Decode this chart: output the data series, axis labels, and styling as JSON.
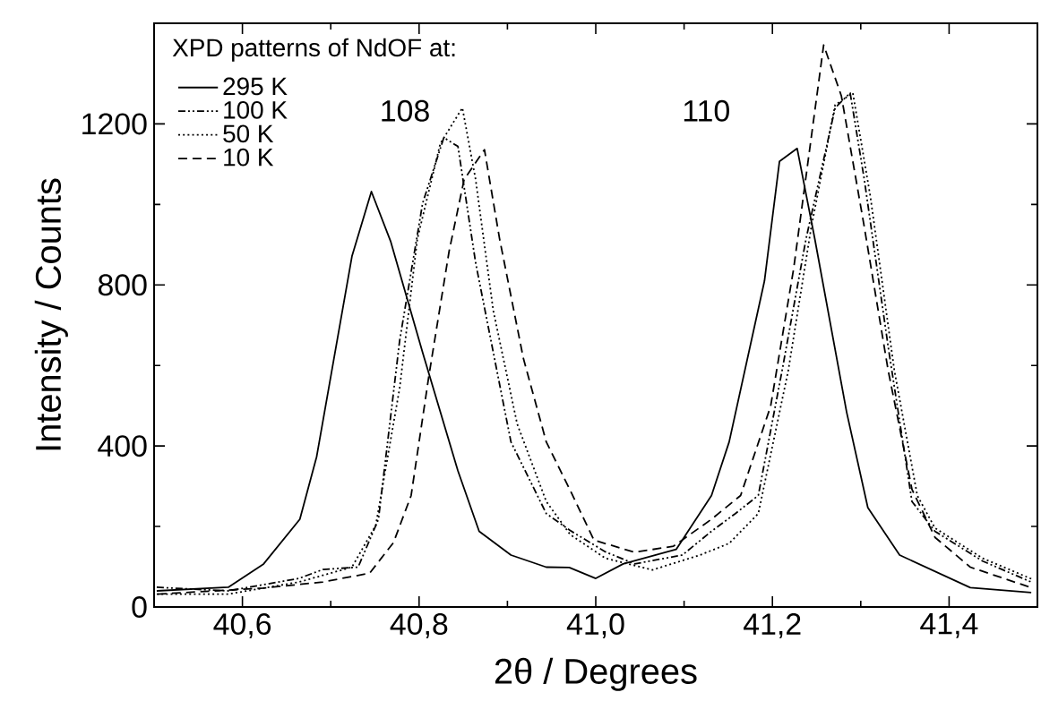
{
  "chart_data": {
    "type": "line",
    "xlabel": "2θ / Degrees",
    "ylabel": "Intensity / Counts",
    "legend_title": "XPD patterns of NdOF at:",
    "legend": "top left",
    "grid": false,
    "marker": "none",
    "xlim": [
      40.5,
      41.5
    ],
    "ylim": [
      0,
      1450
    ],
    "xticks": [
      {
        "value": 40.6,
        "label": "40,6"
      },
      {
        "value": 40.8,
        "label": "40,8"
      },
      {
        "value": 41.0,
        "label": "41,0"
      },
      {
        "value": 41.2,
        "label": "41,2"
      },
      {
        "value": 41.4,
        "label": "41,4"
      }
    ],
    "yticks": [
      0,
      400,
      800,
      1200
    ],
    "annotations": [
      "108",
      "110"
    ],
    "series": [
      {
        "name": "295 K",
        "color": "#000000",
        "line_style": "solid",
        "x": [
          40.503,
          40.584,
          40.624,
          40.665,
          40.684,
          40.724,
          40.746,
          40.768,
          40.804,
          40.844,
          40.868,
          40.904,
          40.944,
          40.97,
          41.0,
          41.031,
          41.091,
          41.131,
          41.151,
          41.191,
          41.208,
          41.228,
          41.248,
          41.284,
          41.308,
          41.344,
          41.424,
          41.493
        ],
        "values": [
          40,
          49,
          107,
          218,
          373,
          871,
          1032,
          907,
          632,
          338,
          188,
          129,
          99,
          98,
          71,
          107,
          143,
          277,
          410,
          810,
          1107,
          1139,
          914,
          484,
          247,
          129,
          48,
          36
        ]
      },
      {
        "name": "100 K",
        "color": "#000000",
        "line_style": "dashdotdot",
        "x": [
          40.503,
          40.584,
          40.664,
          40.691,
          40.731,
          40.754,
          40.778,
          40.804,
          40.828,
          40.844,
          40.864,
          40.904,
          40.944,
          40.971,
          41.011,
          41.044,
          41.098,
          41.131,
          41.158,
          41.184,
          41.211,
          41.238,
          41.271,
          41.288,
          41.304,
          41.331,
          41.358,
          41.384,
          41.438,
          41.493
        ],
        "values": [
          49,
          40,
          71,
          93,
          99,
          218,
          662,
          1003,
          1166,
          1144,
          855,
          410,
          232,
          190,
          137,
          107,
          129,
          188,
          232,
          277,
          588,
          914,
          1240,
          1277,
          1062,
          647,
          262,
          188,
          114,
          62
        ]
      },
      {
        "name": "50 K",
        "color": "#000000",
        "line_style": "dotted",
        "x": [
          40.503,
          40.584,
          40.664,
          40.724,
          40.751,
          40.778,
          40.798,
          40.824,
          40.849,
          40.864,
          40.884,
          40.911,
          40.944,
          40.971,
          41.011,
          41.064,
          41.118,
          41.151,
          41.184,
          41.218,
          41.244,
          41.271,
          41.291,
          41.311,
          41.338,
          41.364,
          41.384,
          41.438,
          41.493
        ],
        "values": [
          32,
          32,
          62,
          99,
          203,
          544,
          914,
          1151,
          1240,
          1062,
          736,
          455,
          262,
          180,
          121,
          92,
          129,
          158,
          232,
          588,
          944,
          1247,
          1277,
          1018,
          588,
          277,
          196,
          121,
          70
        ]
      },
      {
        "name": "10 K",
        "color": "#000000",
        "line_style": "dashed",
        "x": [
          40.504,
          40.624,
          40.691,
          40.744,
          40.771,
          40.791,
          40.811,
          40.834,
          40.851,
          40.874,
          40.891,
          40.918,
          40.944,
          40.971,
          40.998,
          41.044,
          41.088,
          41.131,
          41.164,
          41.198,
          41.224,
          41.258,
          41.278,
          41.304,
          41.331,
          41.358,
          41.384,
          41.424,
          41.493
        ],
        "values": [
          32,
          47,
          62,
          84,
          160,
          277,
          573,
          884,
          1062,
          1136,
          916,
          618,
          410,
          290,
          166,
          136,
          151,
          218,
          277,
          499,
          840,
          1396,
          1270,
          944,
          588,
          292,
          173,
          99,
          48
        ]
      }
    ]
  }
}
